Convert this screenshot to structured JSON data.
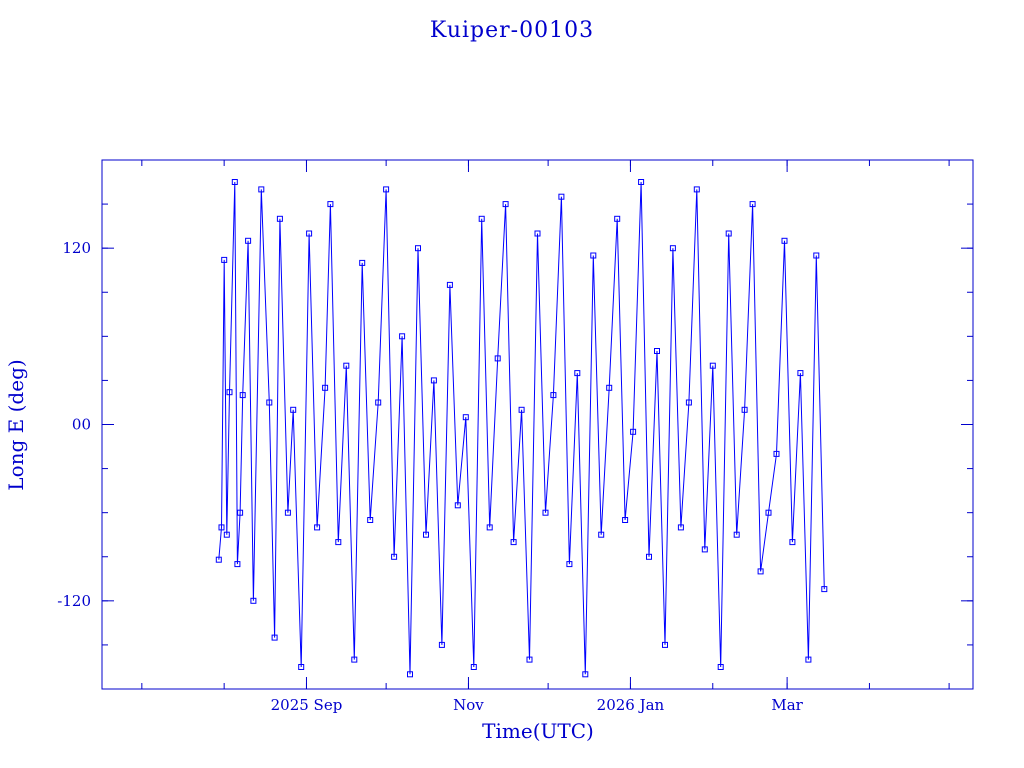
{
  "chart_data": {
    "type": "line",
    "title": "Kuiper-00103",
    "xlabel": "Time(UTC)",
    "ylabel": "Long E (deg)",
    "colors": {
      "axes": "#0000cc",
      "series": "#0000ff"
    },
    "markers": "square",
    "grid": false,
    "legend": "none",
    "xlim": [
      "2025-06-16",
      "2026-05-10"
    ],
    "ylim": [
      -180,
      180
    ],
    "x_ticks": [
      {
        "date": "2025-09-01",
        "label": "2025 Sep"
      },
      {
        "date": "2025-11-01",
        "label": "Nov"
      },
      {
        "date": "2026-01-01",
        "label": "2026 Jan"
      },
      {
        "date": "2026-03-01",
        "label": "Mar"
      }
    ],
    "y_ticks": [
      {
        "value": 120,
        "label": "120"
      },
      {
        "value": 0,
        "label": "00"
      },
      {
        "value": -120,
        "label": "-120"
      }
    ],
    "series": [
      {
        "x": [
          "2025-07-30",
          "2025-07-31",
          "2025-08-01",
          "2025-08-02",
          "2025-08-03",
          "2025-08-05",
          "2025-08-06",
          "2025-08-07",
          "2025-08-08",
          "2025-08-10",
          "2025-08-12",
          "2025-08-15",
          "2025-08-18",
          "2025-08-20",
          "2025-08-22",
          "2025-08-25",
          "2025-08-27",
          "2025-08-30",
          "2025-09-02",
          "2025-09-05",
          "2025-09-08",
          "2025-09-10",
          "2025-09-13",
          "2025-09-16",
          "2025-09-19",
          "2025-09-22",
          "2025-09-25",
          "2025-09-28",
          "2025-10-01",
          "2025-10-04",
          "2025-10-07",
          "2025-10-10",
          "2025-10-13",
          "2025-10-16",
          "2025-10-19",
          "2025-10-22",
          "2025-10-25",
          "2025-10-28",
          "2025-10-31",
          "2025-11-03",
          "2025-11-06",
          "2025-11-09",
          "2025-11-12",
          "2025-11-15",
          "2025-11-18",
          "2025-11-21",
          "2025-11-24",
          "2025-11-27",
          "2025-11-30",
          "2025-12-03",
          "2025-12-06",
          "2025-12-09",
          "2025-12-12",
          "2025-12-15",
          "2025-12-18",
          "2025-12-21",
          "2025-12-24",
          "2025-12-27",
          "2025-12-30",
          "2026-01-02",
          "2026-01-05",
          "2026-01-08",
          "2026-01-11",
          "2026-01-14",
          "2026-01-17",
          "2026-01-20",
          "2026-01-23",
          "2026-01-26",
          "2026-01-29",
          "2026-02-01",
          "2026-02-04",
          "2026-02-07",
          "2026-02-10",
          "2026-02-13",
          "2026-02-16",
          "2026-02-19",
          "2026-02-22",
          "2026-02-25",
          "2026-02-28",
          "2026-03-03",
          "2026-03-06",
          "2026-03-09",
          "2026-03-12",
          "2026-03-15"
        ],
        "y": [
          -92,
          -70,
          112,
          -75,
          22,
          165,
          -95,
          -60,
          20,
          125,
          -120,
          160,
          15,
          -145,
          140,
          -60,
          10,
          -165,
          130,
          -70,
          25,
          150,
          -80,
          40,
          -160,
          110,
          -65,
          15,
          160,
          -90,
          60,
          -170,
          120,
          -75,
          30,
          -150,
          95,
          -55,
          5,
          -165,
          140,
          -70,
          45,
          150,
          -80,
          10,
          -160,
          130,
          -60,
          20,
          155,
          -95,
          35,
          -170,
          115,
          -75,
          25,
          140,
          -65,
          -5,
          165,
          -90,
          50,
          -150,
          120,
          -70,
          15,
          160,
          -85,
          40,
          -165,
          130,
          -75,
          10,
          150,
          -100,
          -60,
          -20,
          125,
          -80,
          35,
          -160,
          115,
          -112
        ]
      }
    ]
  }
}
